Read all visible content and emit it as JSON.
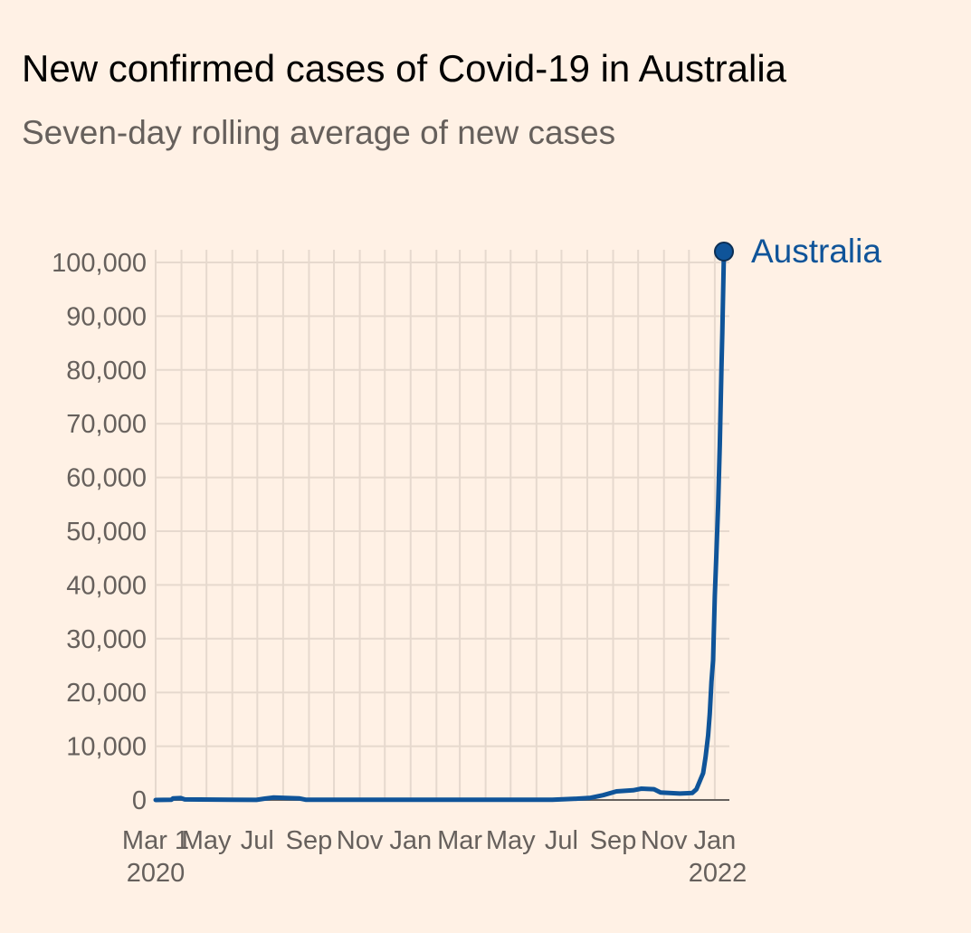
{
  "title": "New confirmed cases of Covid-19 in Australia",
  "subtitle": "Seven-day rolling average of new cases",
  "colors": {
    "background": "#fff1e5",
    "series": "#0f5499",
    "grid": "#e6d9ce",
    "axis": "#66605c",
    "text": "#66605c",
    "title": "#000000"
  },
  "chart_data": {
    "type": "line",
    "title": "New confirmed cases of Covid-19 in Australia",
    "subtitle": "Seven-day rolling average of new cases",
    "xlabel": "",
    "ylabel": "",
    "ylim": [
      0,
      100000
    ],
    "xlim": [
      "2020-03-01",
      "2022-01-12"
    ],
    "grid": "vertical and horizontal",
    "legend": "direct label at line end (top-right)",
    "y_ticks": [
      0,
      10000,
      20000,
      30000,
      40000,
      50000,
      60000,
      70000,
      80000,
      90000,
      100000
    ],
    "y_tick_labels": [
      "0",
      "10,000",
      "20,000",
      "30,000",
      "40,000",
      "50,000",
      "60,000",
      "70,000",
      "80,000",
      "90,000",
      "100,000"
    ],
    "x_ticks": [
      {
        "date": "2020-03-01",
        "label": "Mar 1",
        "year": "2020"
      },
      {
        "date": "2020-05-01",
        "label": "May",
        "year": ""
      },
      {
        "date": "2020-07-01",
        "label": "Jul",
        "year": ""
      },
      {
        "date": "2020-09-01",
        "label": "Sep",
        "year": ""
      },
      {
        "date": "2020-11-01",
        "label": "Nov",
        "year": ""
      },
      {
        "date": "2021-01-01",
        "label": "Jan",
        "year": ""
      },
      {
        "date": "2021-03-01",
        "label": "Mar",
        "year": ""
      },
      {
        "date": "2021-05-01",
        "label": "May",
        "year": ""
      },
      {
        "date": "2021-07-01",
        "label": "Jul",
        "year": ""
      },
      {
        "date": "2021-09-01",
        "label": "Sep",
        "year": ""
      },
      {
        "date": "2021-11-01",
        "label": "Nov",
        "year": ""
      },
      {
        "date": "2022-01-01",
        "label": "Jan",
        "year": "2022"
      }
    ],
    "series": [
      {
        "name": "Australia",
        "color": "#0f5499",
        "points": [
          {
            "x": "2020-03-01",
            "y": 0
          },
          {
            "x": "2020-03-20",
            "y": 50
          },
          {
            "x": "2020-03-22",
            "y": 300
          },
          {
            "x": "2020-03-31",
            "y": 350
          },
          {
            "x": "2020-04-05",
            "y": 100
          },
          {
            "x": "2020-06-30",
            "y": 20
          },
          {
            "x": "2020-07-10",
            "y": 250
          },
          {
            "x": "2020-07-20",
            "y": 450
          },
          {
            "x": "2020-08-20",
            "y": 300
          },
          {
            "x": "2020-08-28",
            "y": 50
          },
          {
            "x": "2021-06-20",
            "y": 40
          },
          {
            "x": "2021-07-15",
            "y": 200
          },
          {
            "x": "2021-08-05",
            "y": 400
          },
          {
            "x": "2021-08-20",
            "y": 900
          },
          {
            "x": "2021-09-05",
            "y": 1600
          },
          {
            "x": "2021-09-25",
            "y": 1800
          },
          {
            "x": "2021-10-05",
            "y": 2100
          },
          {
            "x": "2021-10-20",
            "y": 2000
          },
          {
            "x": "2021-10-28",
            "y": 1400
          },
          {
            "x": "2021-11-20",
            "y": 1200
          },
          {
            "x": "2021-12-05",
            "y": 1300
          },
          {
            "x": "2021-12-10",
            "y": 2000
          },
          {
            "x": "2021-12-14",
            "y": 3500
          },
          {
            "x": "2021-12-18",
            "y": 5000
          },
          {
            "x": "2021-12-21",
            "y": 8000
          },
          {
            "x": "2021-12-24",
            "y": 12000
          },
          {
            "x": "2021-12-26",
            "y": 16000
          },
          {
            "x": "2021-12-28",
            "y": 22000
          },
          {
            "x": "2021-12-30",
            "y": 26000
          },
          {
            "x": "2022-01-01",
            "y": 38000
          },
          {
            "x": "2022-01-03",
            "y": 46000
          },
          {
            "x": "2022-01-05",
            "y": 55000
          },
          {
            "x": "2022-01-07",
            "y": 66000
          },
          {
            "x": "2022-01-09",
            "y": 80000
          },
          {
            "x": "2022-01-10",
            "y": 87000
          },
          {
            "x": "2022-01-12",
            "y": 102000
          }
        ]
      }
    ]
  }
}
